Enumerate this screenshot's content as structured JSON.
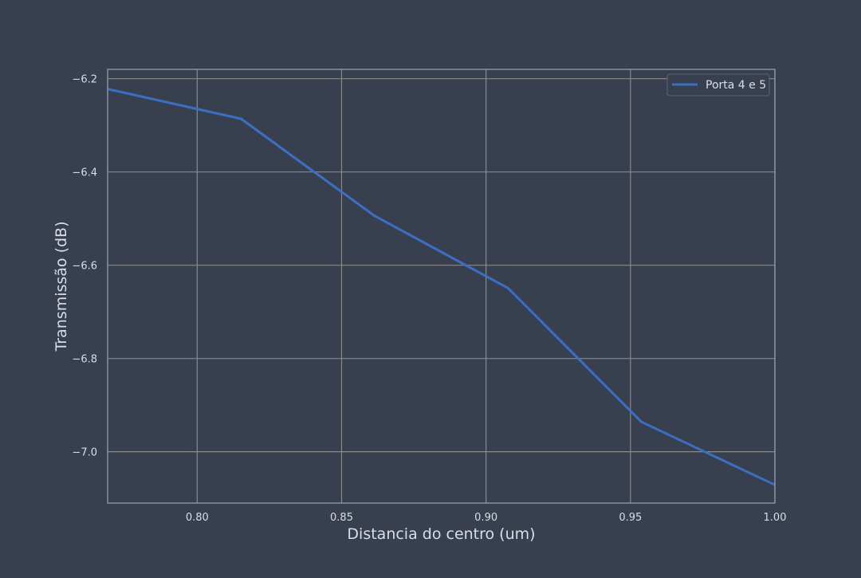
{
  "colors": {
    "background": "#384050",
    "axes_background": "#384050",
    "grid": "#8a8a8a",
    "spine": "#8f9cb3",
    "text": "#d8dde6",
    "series": "#3a6fc4",
    "legend_border": "#5a6478"
  },
  "chart_data": {
    "type": "line",
    "title": "",
    "xlabel": "Distancia do centro (um)",
    "ylabel": "Transmissão (dB)",
    "xlim": [
      0.769,
      1.0
    ],
    "ylim": [
      -7.11,
      -6.18
    ],
    "xticks": [
      0.8,
      0.85,
      0.9,
      0.95,
      1.0
    ],
    "xtick_labels": [
      "0.80",
      "0.85",
      "0.90",
      "0.95",
      "1.00"
    ],
    "yticks": [
      -6.2,
      -6.4,
      -6.6,
      -6.8,
      -7.0
    ],
    "ytick_labels": [
      "−6.2",
      "−6.4",
      "−6.6",
      "−6.8",
      "−7.0"
    ],
    "grid": true,
    "legend_position": "top-right",
    "series": [
      {
        "name": "Porta 4 e 5",
        "color": "#3a6fc4",
        "x": [
          0.769,
          0.8152,
          0.8614,
          0.9076,
          0.9538,
          1.0
        ],
        "y": [
          -6.222,
          -6.286,
          -6.494,
          -6.649,
          -6.936,
          -7.071
        ]
      }
    ]
  }
}
